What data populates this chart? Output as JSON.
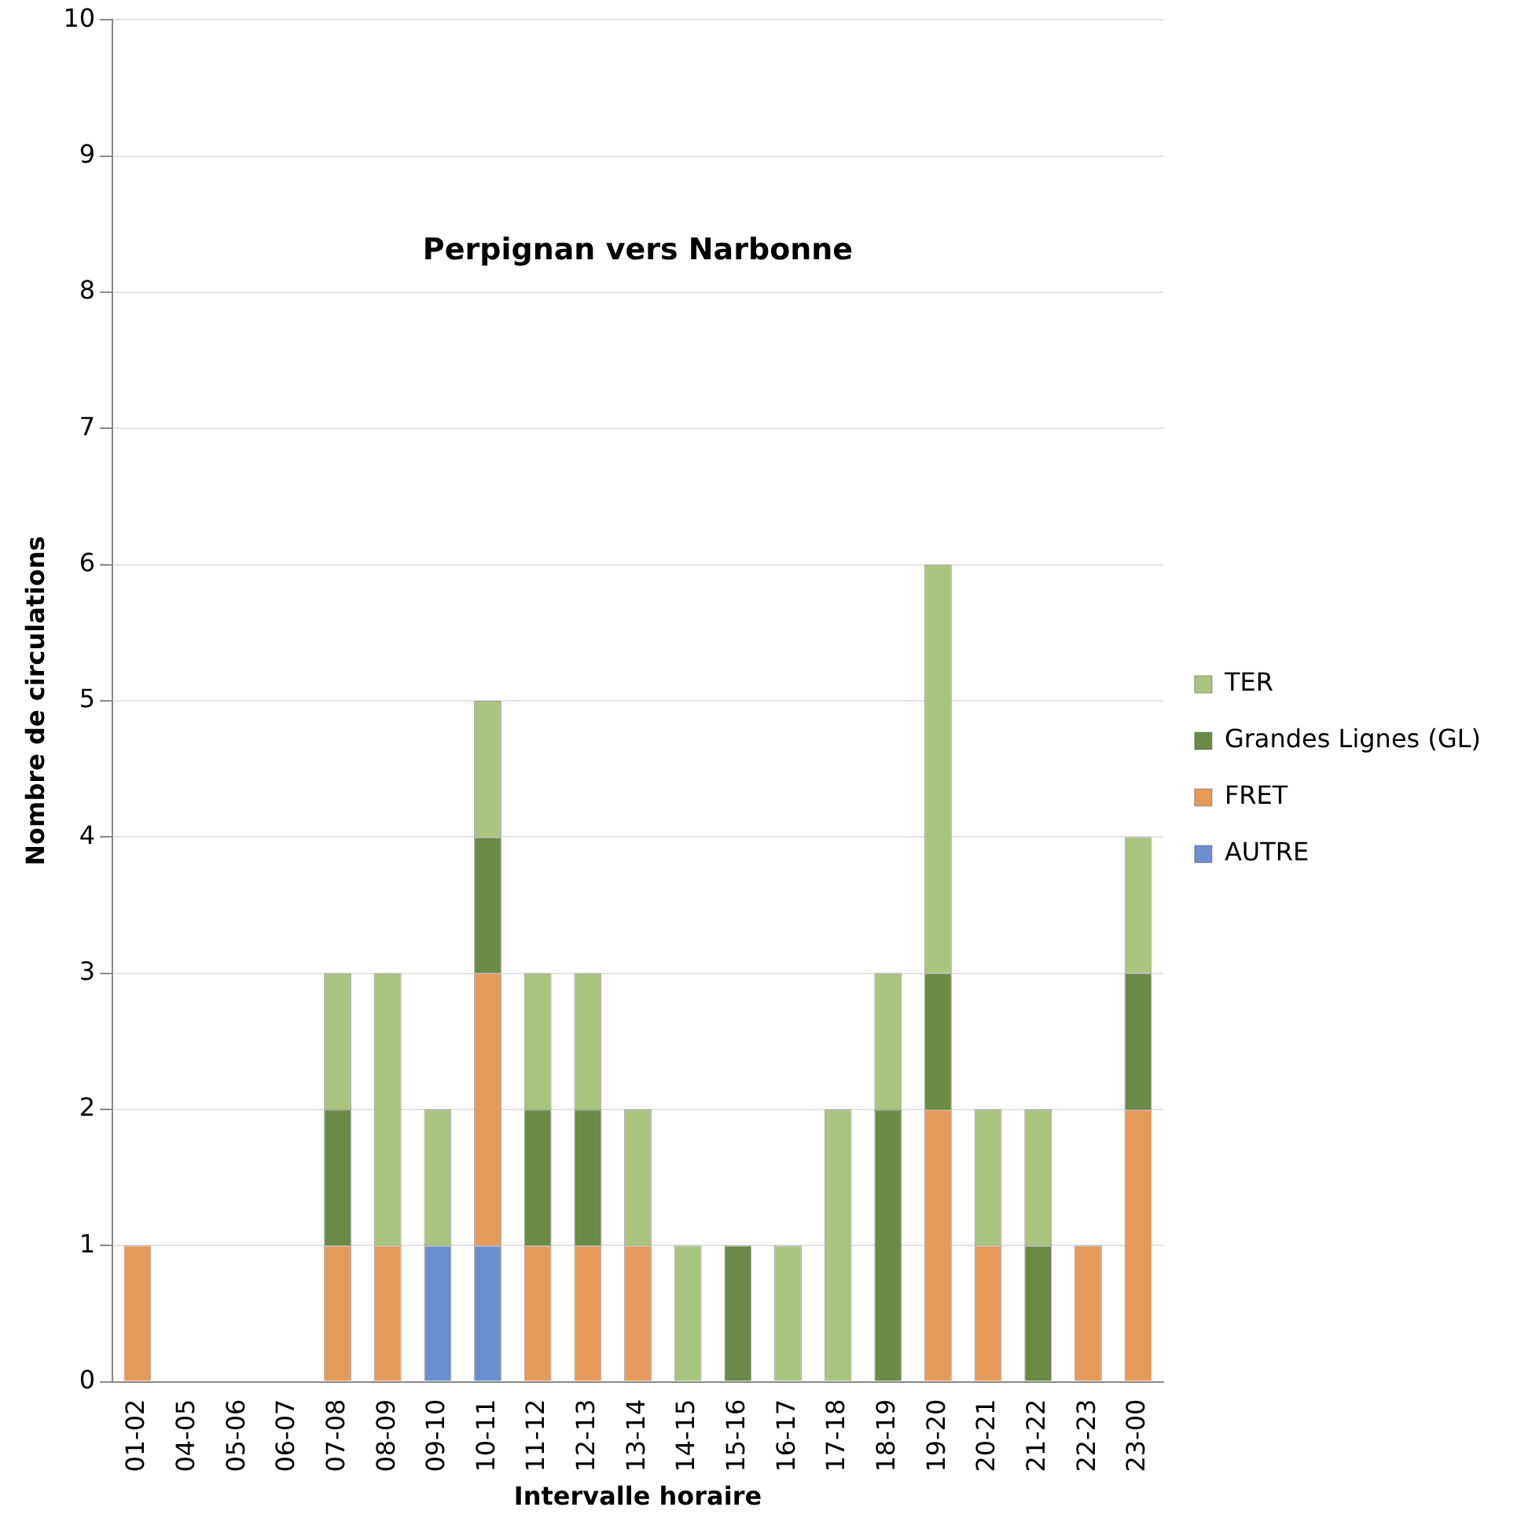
{
  "chart_data": {
    "type": "bar",
    "title": "Perpignan vers Narbonne",
    "xlabel": "Intervalle horaire",
    "ylabel": "Nombre de circulations",
    "categories": [
      "01-02",
      "04-05",
      "05-06",
      "06-07",
      "07-08",
      "08-09",
      "09-10",
      "10-11",
      "11-12",
      "12-13",
      "13-14",
      "14-15",
      "15-16",
      "16-17",
      "17-18",
      "18-19",
      "19-20",
      "20-21",
      "21-22",
      "22-23",
      "23-00"
    ],
    "stacked": true,
    "ylim": [
      0,
      10
    ],
    "yticks": [
      0,
      1,
      2,
      3,
      4,
      5,
      6,
      7,
      8,
      9,
      10
    ],
    "grid": "y",
    "legend": "right",
    "series": [
      {
        "name": "AUTRE",
        "color": "#6b8fce",
        "values": [
          0,
          0,
          0,
          0,
          0,
          0,
          1,
          1,
          0,
          0,
          0,
          0,
          0,
          0,
          0,
          0,
          0,
          0,
          0,
          0,
          0
        ]
      },
      {
        "name": "FRET",
        "color": "#e59a5a",
        "values": [
          1,
          0,
          0,
          0,
          1,
          1,
          0,
          2,
          1,
          1,
          1,
          0,
          0,
          0,
          0,
          0,
          2,
          1,
          0,
          1,
          2
        ]
      },
      {
        "name": "Grandes Lignes (GL)",
        "color": "#6a8a45",
        "values": [
          0,
          0,
          0,
          0,
          1,
          0,
          0,
          1,
          1,
          1,
          0,
          0,
          1,
          0,
          0,
          2,
          1,
          0,
          1,
          0,
          1
        ]
      },
      {
        "name": "TER",
        "color": "#a9c47f",
        "values": [
          0,
          0,
          0,
          0,
          1,
          2,
          1,
          1,
          1,
          1,
          1,
          1,
          0,
          1,
          2,
          1,
          3,
          1,
          1,
          0,
          1
        ]
      }
    ]
  }
}
